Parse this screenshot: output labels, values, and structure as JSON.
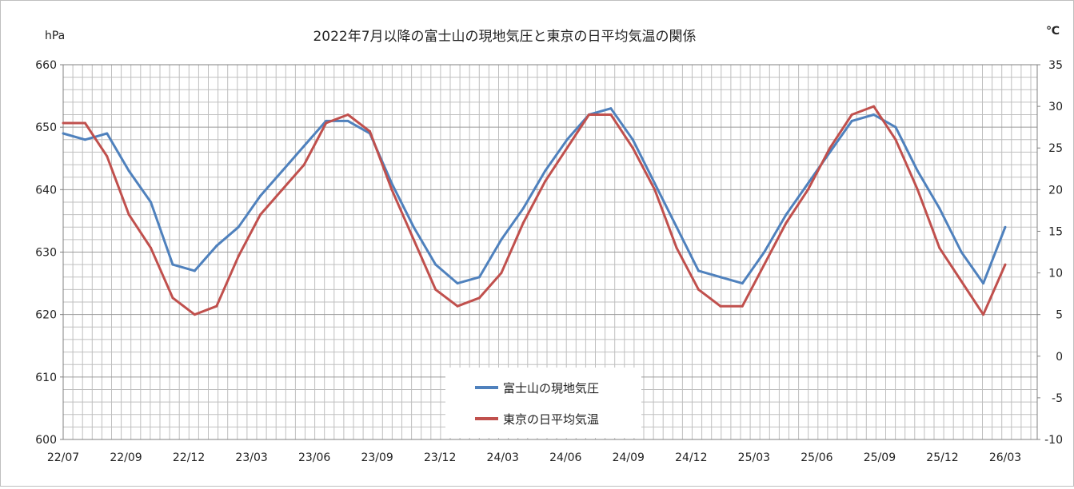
{
  "chart_data": {
    "type": "line",
    "title": "2022年7月以降の富士山の現地気圧と東京の日平均気温の関係",
    "left_axis": {
      "label": "hPa",
      "ylim": [
        600,
        660
      ],
      "ticks": [
        "600",
        "610",
        "620",
        "630",
        "640",
        "650",
        "660"
      ]
    },
    "right_axis": {
      "label": "℃",
      "ylim": [
        -10,
        35
      ],
      "ticks": [
        "-10",
        "-5",
        "0",
        "5",
        "10",
        "15",
        "20",
        "25",
        "30",
        "35"
      ]
    },
    "x_tick_labels": [
      "22/07",
      "22/09",
      "22/12",
      "23/03",
      "23/06",
      "23/09",
      "23/12",
      "24/03",
      "24/06",
      "24/09",
      "24/12",
      "25/03",
      "25/06",
      "25/09",
      "25/12",
      "26/03"
    ],
    "grid": true,
    "legend_position": "bottom-center",
    "series": [
      {
        "name": "富士山の現地気圧",
        "axis": "left",
        "color": "#4f81bd",
        "x": [
          "22/07",
          "22/08",
          "22/09",
          "22/10",
          "22/11",
          "22/12",
          "23/01",
          "23/02",
          "23/03",
          "23/04",
          "23/05",
          "23/06",
          "23/07",
          "23/08",
          "23/09",
          "23/10",
          "23/11",
          "23/12",
          "24/01",
          "24/02",
          "24/03",
          "24/04",
          "24/05",
          "24/06",
          "24/07",
          "24/08",
          "24/09",
          "24/10",
          "24/11",
          "24/12",
          "25/01",
          "25/02",
          "25/03",
          "25/04",
          "25/05",
          "25/06",
          "25/07",
          "25/08",
          "25/09",
          "25/10",
          "25/11",
          "25/12",
          "26/01",
          "26/02"
        ],
        "values": [
          649,
          648,
          649,
          643,
          638,
          628,
          627,
          631,
          634,
          639,
          643,
          647,
          651,
          651,
          649,
          641,
          634,
          628,
          625,
          626,
          632,
          637,
          643,
          648,
          652,
          653,
          648,
          641,
          634,
          627,
          626,
          625,
          630,
          636,
          641,
          646,
          651,
          652,
          650,
          643,
          637,
          630,
          625,
          634
        ]
      },
      {
        "name": "東京の日平均気温",
        "axis": "right",
        "color": "#c0504d",
        "x": [
          "22/07",
          "22/08",
          "22/09",
          "22/10",
          "22/11",
          "22/12",
          "23/01",
          "23/02",
          "23/03",
          "23/04",
          "23/05",
          "23/06",
          "23/07",
          "23/08",
          "23/09",
          "23/10",
          "23/11",
          "23/12",
          "24/01",
          "24/02",
          "24/03",
          "24/04",
          "24/05",
          "24/06",
          "24/07",
          "24/08",
          "24/09",
          "24/10",
          "24/11",
          "24/12",
          "25/01",
          "25/02",
          "25/03",
          "25/04",
          "25/05",
          "25/06",
          "25/07",
          "25/08",
          "25/09",
          "25/10",
          "25/11",
          "25/12",
          "26/01",
          "26/02"
        ],
        "values": [
          28,
          28,
          24,
          17,
          13,
          7,
          5,
          6,
          12,
          17,
          20,
          23,
          28,
          29,
          27,
          20,
          14,
          8,
          6,
          7,
          10,
          16,
          21,
          25,
          29,
          29,
          25,
          20,
          13,
          8,
          6,
          6,
          11,
          16,
          20,
          25,
          29,
          30,
          26,
          20,
          13,
          9,
          5,
          11
        ]
      }
    ]
  }
}
